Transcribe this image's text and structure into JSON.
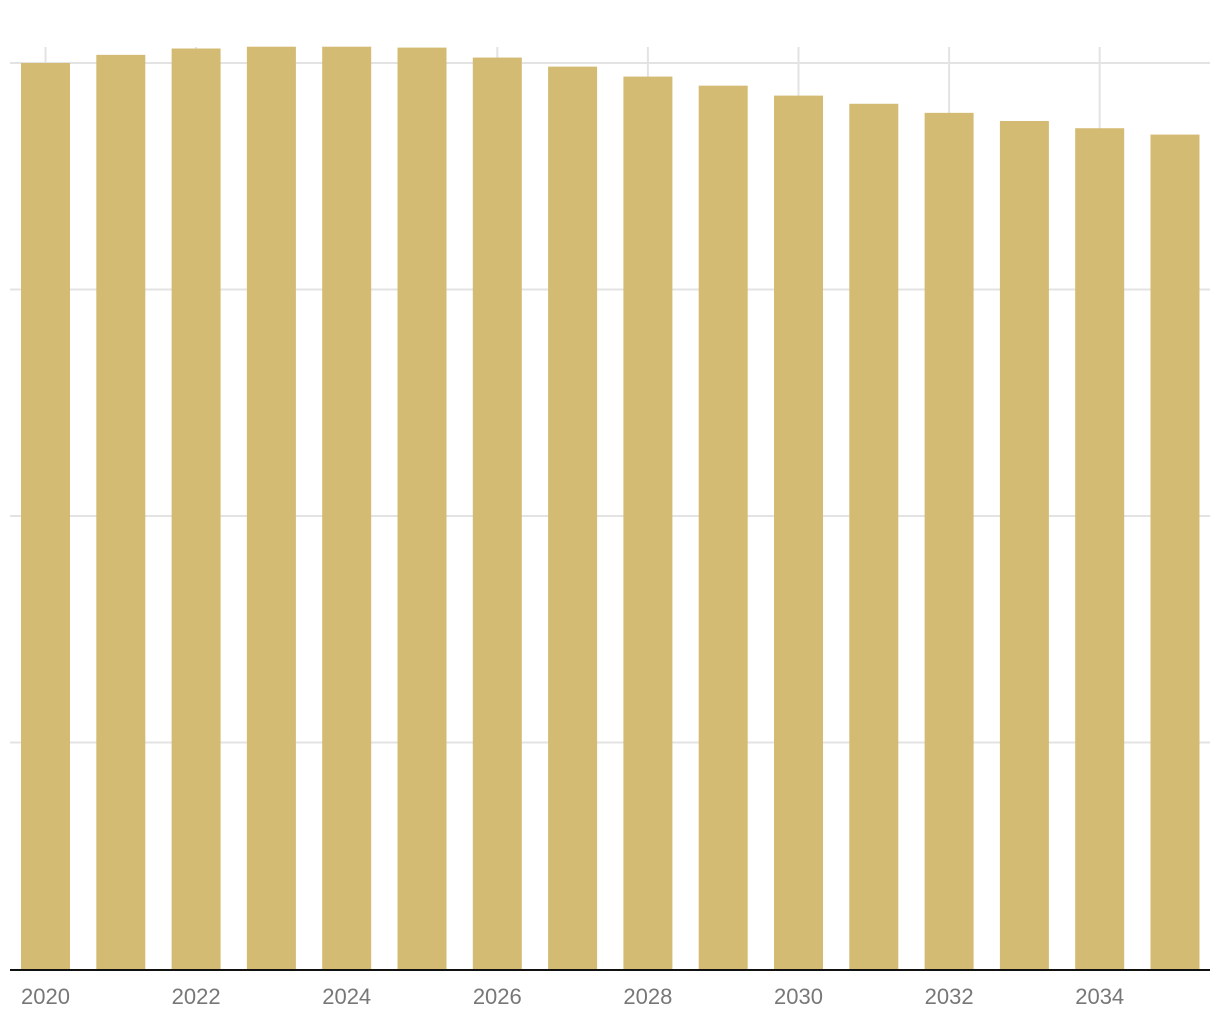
{
  "chart_data": {
    "type": "bar",
    "title": "",
    "xlabel": "",
    "ylabel": "",
    "x": [
      2020,
      2021,
      2022,
      2023,
      2024,
      2025,
      2026,
      2027,
      2028,
      2029,
      2030,
      2031,
      2032,
      2033,
      2034,
      2035
    ],
    "values": [
      1.0,
      1.009,
      1.016,
      1.018,
      1.018,
      1.017,
      1.006,
      0.996,
      0.985,
      0.975,
      0.964,
      0.955,
      0.945,
      0.936,
      0.928,
      0.921
    ],
    "x_tick_labels": [
      "2020",
      "2022",
      "2024",
      "2026",
      "2028",
      "2030",
      "2032",
      "2034"
    ],
    "y_gridlines": [
      0,
      0.25,
      0.5,
      0.75,
      1.0
    ],
    "ylim": [
      0,
      1.0
    ],
    "grid": true,
    "legend": "none",
    "colors": {
      "bar": "#d4bb73",
      "grid": "#e3e3e3",
      "axis": "#111111",
      "tick_text": "#777777"
    }
  }
}
